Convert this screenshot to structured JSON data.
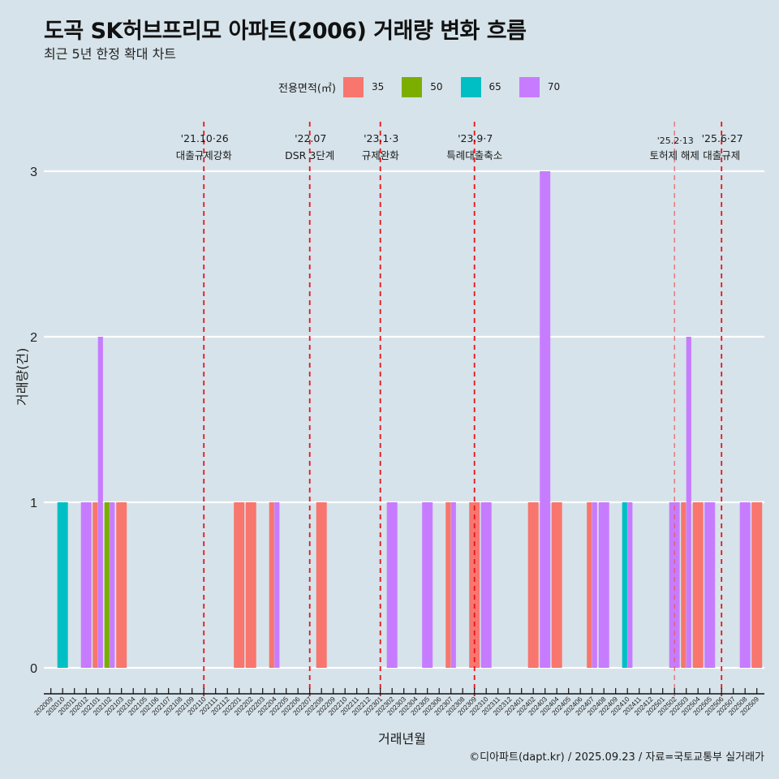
{
  "header": {
    "title": "도곡 SK허브프리모 아파트(2006) 거래량 변화 흐름",
    "subtitle": "최근 5년 한정 확대 차트"
  },
  "legend": {
    "title": "전용면적(㎡)",
    "items": [
      {
        "label": "35",
        "color": "#F8766D"
      },
      {
        "label": "50",
        "color": "#7CAE00"
      },
      {
        "label": "65",
        "color": "#00BFC4"
      },
      {
        "label": "70",
        "color": "#C77CFF"
      }
    ]
  },
  "footer": {
    "caption": "©디아파트(dapt.kr) / 2025.09.23 / 자료=국토교통부 실거래가"
  },
  "chart_data": {
    "type": "bar",
    "title": "도곡 SK허브프리모 아파트(2006) 거래량 변화 흐름",
    "subtitle": "최근 5년 한정 확대 차트",
    "xlabel": "거래년월",
    "ylabel": "거래량(건)",
    "ylim": [
      0,
      3
    ],
    "yticks": [
      0,
      1,
      2,
      3
    ],
    "grid": true,
    "legend_position": "top",
    "position": "dodge",
    "categories": [
      "202009",
      "202010",
      "202011",
      "202012",
      "202101",
      "202102",
      "202103",
      "202104",
      "202105",
      "202106",
      "202107",
      "202108",
      "202109",
      "202110",
      "202111",
      "202112",
      "202201",
      "202202",
      "202203",
      "202204",
      "202205",
      "202206",
      "202207",
      "202208",
      "202209",
      "202210",
      "202211",
      "202212",
      "202301",
      "202302",
      "202303",
      "202304",
      "202305",
      "202306",
      "202307",
      "202308",
      "202309",
      "202310",
      "202311",
      "202312",
      "202401",
      "202402",
      "202403",
      "202404",
      "202405",
      "202406",
      "202407",
      "202408",
      "202409",
      "202410",
      "202411",
      "202412",
      "202501",
      "202502",
      "202503",
      "202504",
      "202505",
      "202506",
      "202507",
      "202508",
      "202509"
    ],
    "series_names": [
      "35",
      "50",
      "65",
      "70"
    ],
    "colors": {
      "35": "#F8766D",
      "50": "#7CAE00",
      "65": "#00BFC4",
      "70": "#C77CFF"
    },
    "bars": [
      {
        "month": "202010",
        "counts": {
          "65": 1
        }
      },
      {
        "month": "202012",
        "counts": {
          "70": 1
        }
      },
      {
        "month": "202101",
        "counts": {
          "35": 1,
          "70": 2
        }
      },
      {
        "month": "202102",
        "counts": {
          "50": 1,
          "70": 1
        }
      },
      {
        "month": "202103",
        "counts": {
          "35": 1
        }
      },
      {
        "month": "202201",
        "counts": {
          "35": 1
        }
      },
      {
        "month": "202202",
        "counts": {
          "35": 1
        }
      },
      {
        "month": "202204",
        "counts": {
          "35": 1,
          "70": 1
        }
      },
      {
        "month": "202208",
        "counts": {
          "35": 1
        }
      },
      {
        "month": "202302",
        "counts": {
          "70": 1
        }
      },
      {
        "month": "202305",
        "counts": {
          "70": 1
        }
      },
      {
        "month": "202307",
        "counts": {
          "35": 1,
          "70": 1
        }
      },
      {
        "month": "202309",
        "counts": {
          "35": 1
        }
      },
      {
        "month": "202310",
        "counts": {
          "70": 1
        }
      },
      {
        "month": "202402",
        "counts": {
          "35": 1
        }
      },
      {
        "month": "202403",
        "counts": {
          "70": 3
        }
      },
      {
        "month": "202404",
        "counts": {
          "35": 1
        }
      },
      {
        "month": "202407",
        "counts": {
          "35": 1,
          "70": 1
        }
      },
      {
        "month": "202408",
        "counts": {
          "70": 1
        }
      },
      {
        "month": "202410",
        "counts": {
          "65": 1,
          "70": 1
        }
      },
      {
        "month": "202502",
        "counts": {
          "70": 1
        }
      },
      {
        "month": "202503",
        "counts": {
          "35": 1,
          "70": 2
        }
      },
      {
        "month": "202504",
        "counts": {
          "35": 1
        }
      },
      {
        "month": "202505",
        "counts": {
          "70": 1
        }
      },
      {
        "month": "202508",
        "counts": {
          "70": 1
        }
      },
      {
        "month": "202509",
        "counts": {
          "35": 1
        }
      }
    ],
    "annotations": [
      {
        "month": "202110",
        "date": "'21.10·26",
        "label": "대출규제강화",
        "style": "major"
      },
      {
        "month": "202207",
        "date": "'22.07",
        "label": "DSR 3단계",
        "style": "major"
      },
      {
        "month": "202301",
        "date": "'23.1·3",
        "label": "규제완화",
        "style": "major"
      },
      {
        "month": "202309",
        "date": "'23.9·7",
        "label": "특례대출축소",
        "style": "major"
      },
      {
        "month": "202502",
        "date": "'25.2·13",
        "label": "토허제 해제",
        "style": "minor"
      },
      {
        "month": "202506",
        "date": "'25.6·27",
        "label": "대출규제",
        "style": "major"
      }
    ]
  }
}
